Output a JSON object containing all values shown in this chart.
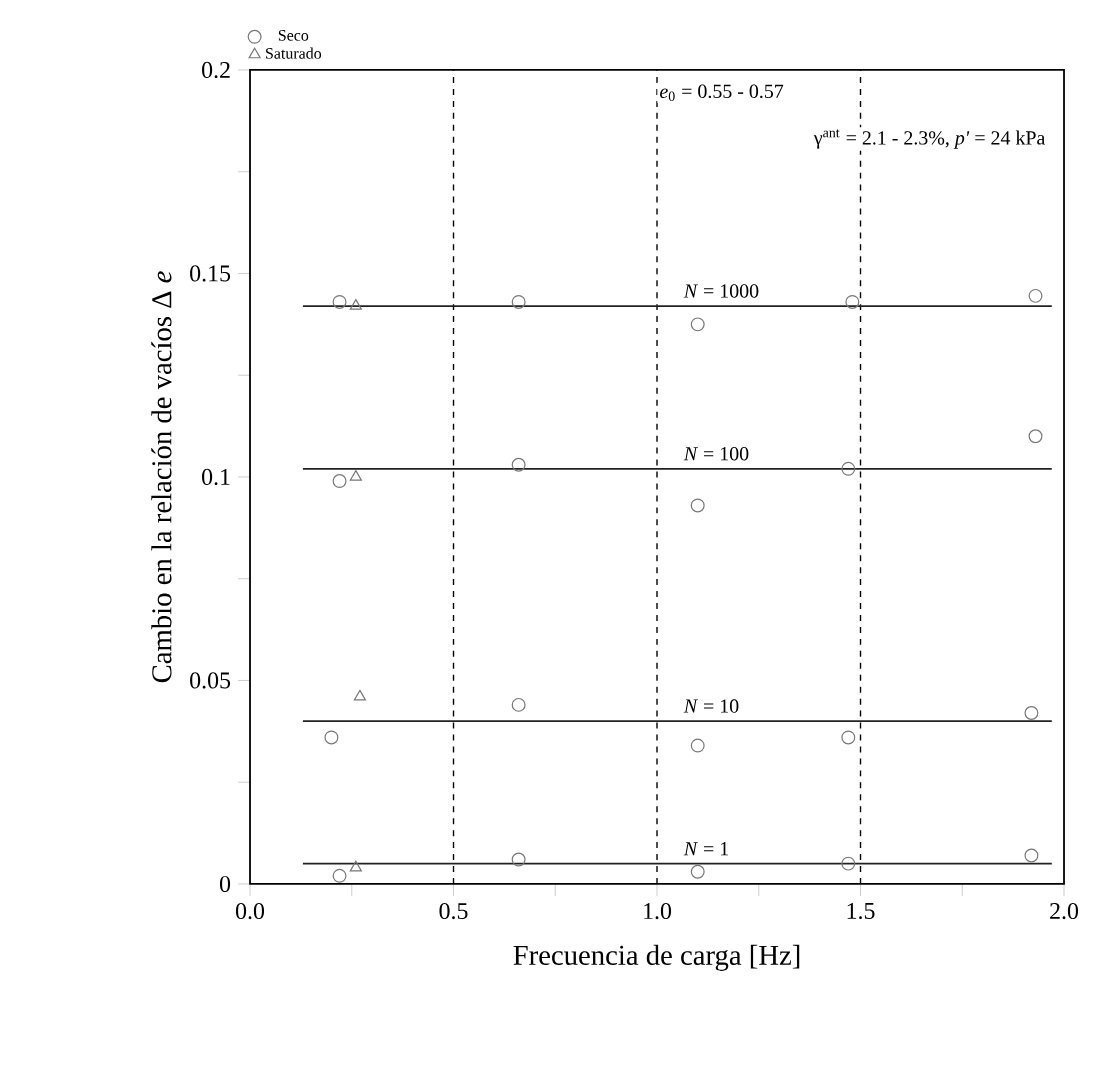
{
  "chart_data": {
    "type": "scatter",
    "xlabel": "Frecuencia de carga [Hz]",
    "ylabel": "Cambio en la relación de vacíos Δ *e*",
    "xlim": [
      0,
      2.0
    ],
    "ylim": [
      0,
      0.2
    ],
    "xticks": [
      {
        "value": 0,
        "label": "0.0"
      },
      {
        "value": 0.25,
        "label": null
      },
      0.5,
      {
        "value": 0.75,
        "label": null
      },
      {
        "value": 1.0,
        "label": "1.0"
      },
      {
        "value": 1.25,
        "label": null
      },
      1.5,
      {
        "value": 1.75,
        "label": null
      },
      {
        "value": 2.0,
        "label": "2.0"
      }
    ],
    "yticks": [
      0,
      {
        "value": 0.025,
        "label": null
      },
      0.05,
      {
        "value": 0.075,
        "label": null
      },
      0.1,
      {
        "value": 0.125,
        "label": null
      },
      0.15,
      {
        "value": 0.175,
        "label": null
      },
      0.2
    ],
    "series": [
      {
        "name": "Seco",
        "marker": "circle",
        "color": "#777777",
        "x": [
          0.22,
          0.66,
          1.1,
          1.48,
          1.93,
          0.22,
          0.66,
          1.1,
          1.47,
          1.93,
          0.2,
          0.66,
          1.1,
          1.47,
          1.92,
          0.22,
          0.66,
          1.1,
          1.47,
          1.92
        ],
        "values": [
          0.143,
          0.143,
          0.1375,
          0.143,
          0.1445,
          0.099,
          0.103,
          0.093,
          0.102,
          0.11,
          0.036,
          0.044,
          0.034,
          0.036,
          0.042,
          0.002,
          0.006,
          0.003,
          0.005,
          0.007
        ]
      },
      {
        "name": "Saturado",
        "marker": "triangle",
        "color": "#777777",
        "x": [
          0.26,
          0.26,
          0.27,
          0.26
        ],
        "values": [
          0.142,
          0.1,
          0.046,
          0.004
        ]
      },
      {
        "type": "line",
        "marker": "none",
        "color": "#222222",
        "x": [
          0.13,
          1.97
        ],
        "values": [
          0.142,
          0.142
        ]
      },
      {
        "type": "line",
        "marker": "none",
        "color": "#222222",
        "x": [
          0.13,
          1.97
        ],
        "values": [
          0.102,
          0.102
        ]
      },
      {
        "type": "line",
        "marker": "none",
        "color": "#222222",
        "x": [
          0.13,
          1.97
        ],
        "values": [
          0.04,
          0.04
        ]
      },
      {
        "type": "line",
        "marker": "none",
        "color": "#222222",
        "x": [
          0.13,
          1.97
        ],
        "values": [
          0.005,
          0.005
        ]
      }
    ],
    "ref_lines": [
      {
        "axis": "x",
        "value": 0.5,
        "line_style": "dashed"
      },
      {
        "axis": "x",
        "value": 1.0,
        "line_style": "dashed"
      },
      {
        "axis": "x",
        "value": 1.5,
        "line_style": "dashed"
      }
    ],
    "annotations": [
      "*e*$_{0}$ = 0.55 - 0.57",
      "γ$^{ant}$ = 2.1 - 2.3%, *p'* = 24 kPa",
      {
        "text": "*N* = 1000",
        "y": 0.142
      },
      {
        "text": "*N* = 100",
        "y": 0.102
      },
      {
        "text": "*N* = 10",
        "y": 0.04
      },
      {
        "text": "*N* = 1",
        "y": 0.005
      }
    ],
    "legend": "top left",
    "grid": false
  }
}
